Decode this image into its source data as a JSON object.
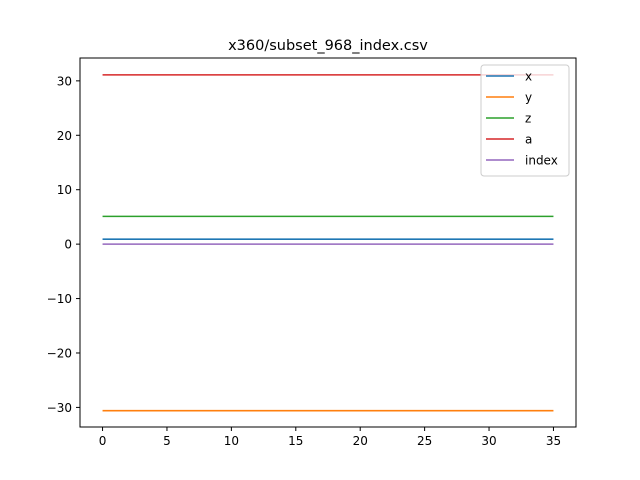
{
  "chart_data": {
    "type": "line",
    "title": "x360/subset_968_index.csv",
    "xlabel": "",
    "ylabel": "",
    "xlim": [
      -1.75,
      36.75
    ],
    "ylim": [
      -33.6,
      34.2
    ],
    "xticks": [
      0,
      5,
      10,
      15,
      20,
      25,
      30,
      35
    ],
    "yticks": [
      -30,
      -20,
      -10,
      0,
      10,
      20,
      30
    ],
    "xtick_labels": [
      "0",
      "5",
      "10",
      "15",
      "20",
      "25",
      "30",
      "35"
    ],
    "ytick_labels": [
      "−30",
      "−20",
      "−10",
      "0",
      "10",
      "20",
      "30"
    ],
    "x_range": [
      0,
      35
    ],
    "grid": false,
    "legend_position": "top-right",
    "series": [
      {
        "name": "x",
        "color": "#1f77b4",
        "x": [
          0,
          35
        ],
        "y": [
          0.9,
          0.9
        ]
      },
      {
        "name": "y",
        "color": "#ff7f0e",
        "x": [
          0,
          35
        ],
        "y": [
          -30.6,
          -30.6
        ]
      },
      {
        "name": "z",
        "color": "#2ca02c",
        "x": [
          0,
          35
        ],
        "y": [
          5.1,
          5.1
        ]
      },
      {
        "name": "a",
        "color": "#d62728",
        "x": [
          0,
          35
        ],
        "y": [
          31.1,
          31.1
        ]
      },
      {
        "name": "index",
        "color": "#9467bd",
        "x": [
          0,
          35
        ],
        "y": [
          0.0,
          0.0
        ]
      }
    ]
  }
}
